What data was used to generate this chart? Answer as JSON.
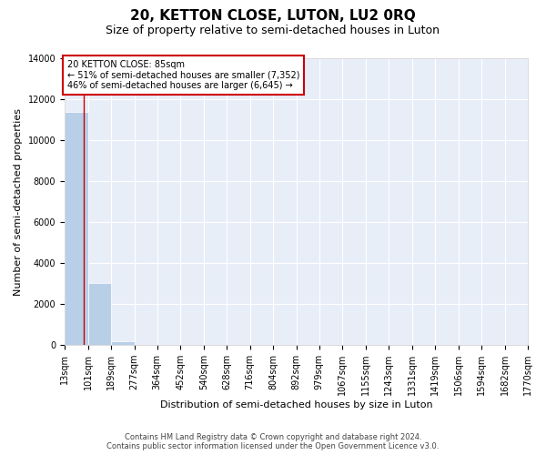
{
  "title": "20, KETTON CLOSE, LUTON, LU2 0RQ",
  "subtitle": "Size of property relative to semi-detached houses in Luton",
  "xlabel": "Distribution of semi-detached houses by size in Luton",
  "ylabel": "Number of semi-detached properties",
  "background_color": "#e8eef8",
  "bar_color": "#b8cfe8",
  "annotation_line_color": "#cc0000",
  "annotation_box_color": "#cc0000",
  "property_size": 85,
  "annotation_text_line1": "20 KETTON CLOSE: 85sqm",
  "annotation_text_line2": "← 51% of semi-detached houses are smaller (7,352)",
  "annotation_text_line3": "46% of semi-detached houses are larger (6,645) →",
  "bin_edges": [
    13,
    101,
    189,
    277,
    364,
    452,
    540,
    628,
    716,
    804,
    892,
    979,
    1067,
    1155,
    1243,
    1331,
    1419,
    1506,
    1594,
    1682,
    1770
  ],
  "bar_heights": [
    11400,
    3050,
    200,
    0,
    0,
    0,
    0,
    0,
    0,
    0,
    0,
    0,
    0,
    0,
    0,
    0,
    0,
    0,
    0,
    0
  ],
  "ylim": [
    0,
    14000
  ],
  "yticks": [
    0,
    2000,
    4000,
    6000,
    8000,
    10000,
    12000,
    14000
  ],
  "footer_line1": "Contains HM Land Registry data © Crown copyright and database right 2024.",
  "footer_line2": "Contains public sector information licensed under the Open Government Licence v3.0.",
  "title_fontsize": 11,
  "subtitle_fontsize": 9,
  "axis_label_fontsize": 8,
  "tick_label_fontsize": 7,
  "tick_labels": [
    "13sqm",
    "101sqm",
    "189sqm",
    "277sqm",
    "364sqm",
    "452sqm",
    "540sqm",
    "628sqm",
    "716sqm",
    "804sqm",
    "892sqm",
    "979sqm",
    "1067sqm",
    "1155sqm",
    "1243sqm",
    "1331sqm",
    "1419sqm",
    "1506sqm",
    "1594sqm",
    "1682sqm",
    "1770sqm"
  ]
}
